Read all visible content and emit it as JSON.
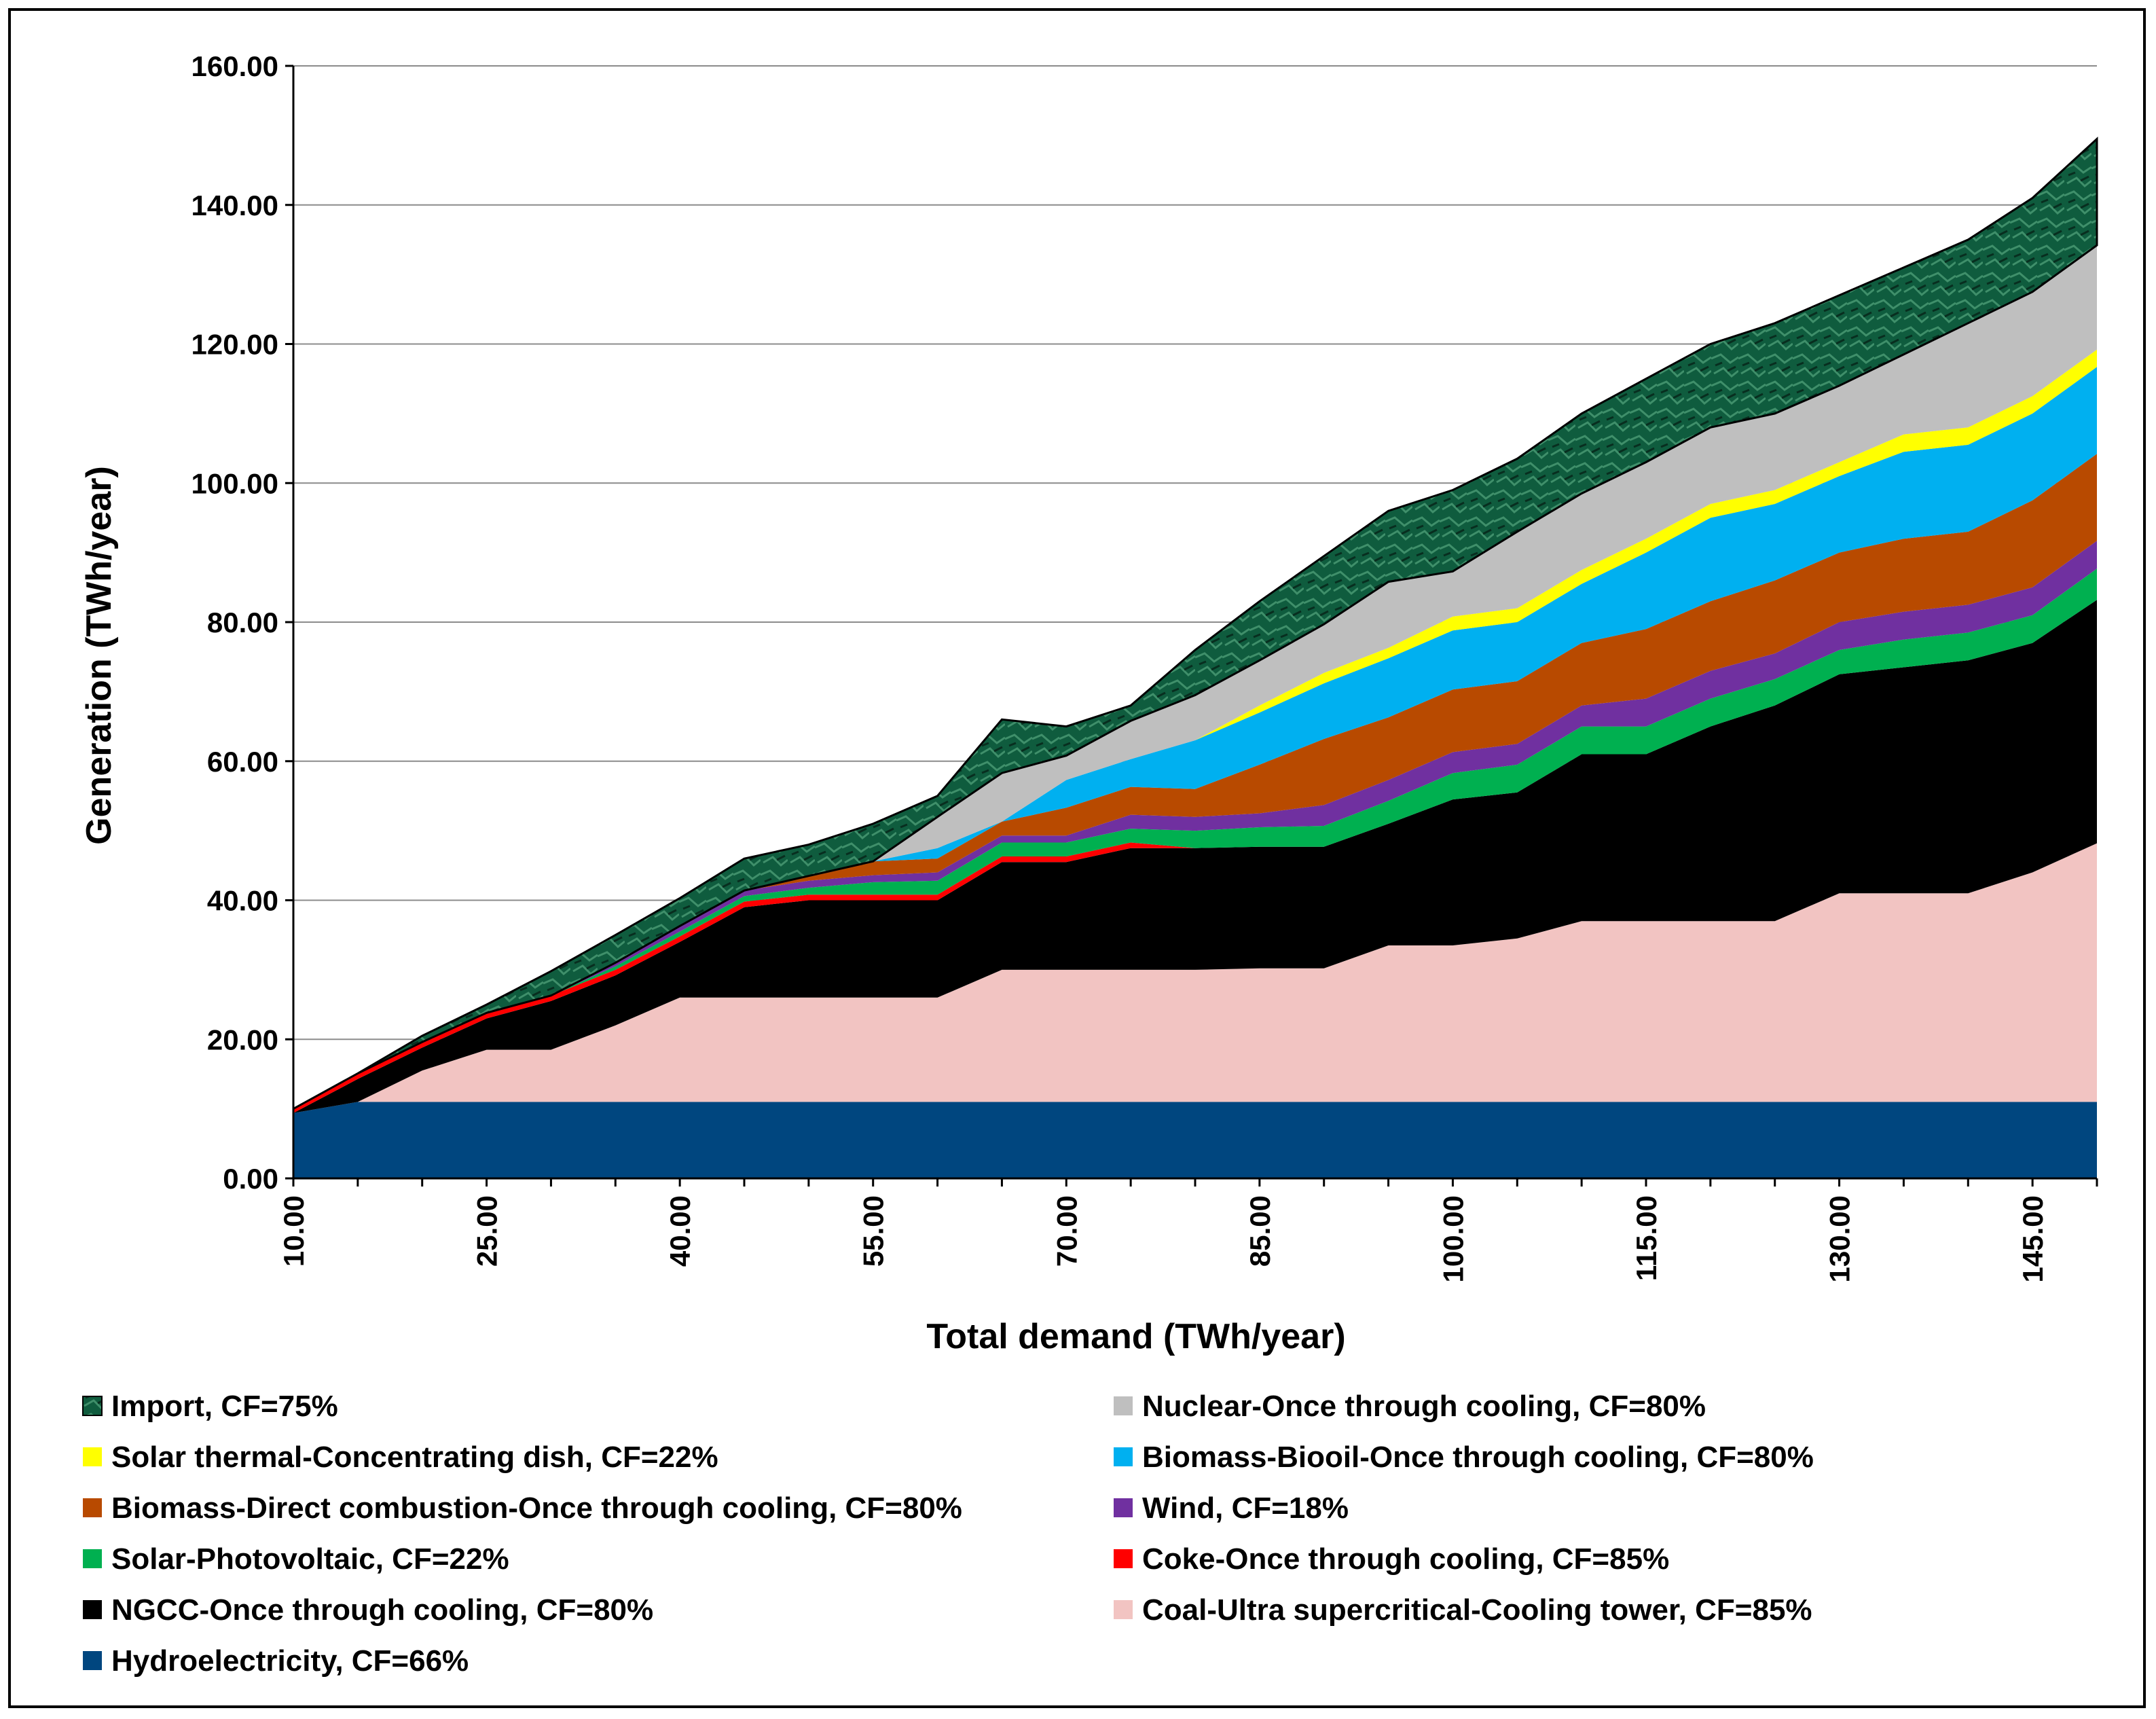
{
  "chart_data": {
    "type": "area",
    "stacked": true,
    "xlabel": "Total demand (TWh/year)",
    "ylabel": "Generation (TWh/year)",
    "ylim": [
      0,
      160
    ],
    "xlim": [
      10,
      150
    ],
    "y_ticks": [
      "0.00",
      "20.00",
      "40.00",
      "60.00",
      "80.00",
      "100.00",
      "120.00",
      "140.00",
      "160.00"
    ],
    "x_ticks": [
      "10.00",
      "25.00",
      "40.00",
      "55.00",
      "70.00",
      "85.00",
      "100.00",
      "115.00",
      "130.00",
      "145.00"
    ],
    "grid": "horizontal",
    "legend_position": "bottom",
    "x": [
      10,
      15,
      20,
      25,
      30,
      35,
      40,
      45,
      50,
      55,
      60,
      65,
      70,
      75,
      80,
      85,
      90,
      95,
      100,
      105,
      110,
      115,
      120,
      125,
      130,
      135,
      140,
      145,
      150
    ],
    "series": [
      {
        "name": "Hydroelectricity, CF=66%",
        "color": "#00467F",
        "values": [
          9.4,
          11,
          11,
          11,
          11,
          11,
          11,
          11,
          11,
          11,
          11,
          11,
          11,
          11,
          11,
          11,
          11,
          11,
          11,
          11,
          11,
          11,
          11,
          11,
          11,
          11,
          11,
          11,
          11
        ]
      },
      {
        "name": "Coal-Ultra supercritical-Cooling tower, CF=85%",
        "color": "#F2C4C2",
        "values": [
          0,
          0,
          4.5,
          7.5,
          7.5,
          11,
          15,
          15,
          15,
          15,
          15,
          19,
          19,
          19,
          19,
          19.2,
          19.2,
          22.5,
          22.5,
          23.5,
          26,
          26,
          26,
          26,
          30,
          30,
          30,
          33,
          37.2
        ]
      },
      {
        "name": "NGCC-Once through cooling, CF=80%",
        "color": "#000000",
        "values": [
          0,
          3.3,
          3.3,
          4.5,
          7,
          7.2,
          8,
          13,
          14,
          14,
          14,
          15.5,
          15.5,
          17.5,
          17.5,
          17.5,
          17.5,
          17.5,
          21,
          21,
          24,
          24,
          28,
          31,
          31.5,
          32.5,
          33.5,
          33,
          35
        ]
      },
      {
        "name": "Coke-Once through cooling, CF=85%",
        "color": "#FF0000",
        "values": [
          0.6,
          0.8,
          0.8,
          0.8,
          0.8,
          0.8,
          0.8,
          0.8,
          0.8,
          0.8,
          0.8,
          0.8,
          0.8,
          0.8,
          0,
          0,
          0,
          0,
          0,
          0,
          0,
          0,
          0,
          0,
          0,
          0,
          0,
          0,
          0
        ]
      },
      {
        "name": "Solar-Photovoltaic, CF=22%",
        "color": "#00B050",
        "values": [
          0,
          0,
          0,
          0,
          0,
          0.5,
          0.7,
          0.8,
          1,
          1.8,
          2,
          2,
          2,
          2,
          2.5,
          2.8,
          3,
          3.3,
          3.8,
          4,
          4,
          4,
          4,
          3.8,
          3.5,
          4,
          4,
          4,
          4.5
        ]
      },
      {
        "name": "Wind, CF=18%",
        "color": "#7030A0",
        "values": [
          0,
          0,
          0,
          0,
          0,
          0.5,
          0.8,
          0.8,
          1,
          1,
          1.2,
          1,
          1,
          2,
          2,
          2,
          3,
          3,
          3,
          3,
          3,
          4,
          4,
          3.7,
          4,
          4,
          4,
          4,
          4
        ]
      },
      {
        "name": "Biomass-Direct combustion-Once through cooling, CF=80%",
        "color": "#B84A00",
        "values": [
          0,
          0,
          0,
          0,
          0,
          0,
          0,
          0,
          0.7,
          2,
          2,
          2,
          4,
          4,
          4,
          7,
          9.5,
          9,
          9,
          9,
          9,
          10,
          10,
          10.5,
          10,
          10.5,
          10.5,
          12.5,
          12.5
        ]
      },
      {
        "name": "Biomass-Biooil-Once through cooling, CF=80%",
        "color": "#00B0F0",
        "values": [
          0,
          0,
          0,
          0,
          0,
          0,
          0,
          0,
          0,
          0,
          1.5,
          0,
          4,
          4,
          7,
          7.5,
          8,
          8.5,
          8.5,
          8.5,
          8.5,
          11,
          12,
          11,
          11,
          12.5,
          12.5,
          12.5,
          12.5
        ]
      },
      {
        "name": "Solar thermal-Concentrating dish, CF=22%",
        "color": "#FFFF00",
        "values": [
          0,
          0,
          0,
          0,
          0,
          0,
          0,
          0,
          0,
          0,
          0,
          0,
          0,
          0,
          0,
          1,
          1.5,
          1.5,
          2,
          2,
          2,
          2,
          2,
          2,
          2,
          2.5,
          2.5,
          2.5,
          2.5
        ]
      },
      {
        "name": "Nuclear-Once through cooling, CF=80%",
        "color": "#BFBFBF",
        "values": [
          0,
          0,
          0,
          0,
          0,
          0,
          0,
          0,
          0,
          0,
          4.5,
          7,
          3.5,
          5.5,
          6.5,
          6.5,
          7,
          9.5,
          6.5,
          11,
          11,
          11,
          11,
          11,
          11,
          11.5,
          15,
          15,
          15
        ]
      },
      {
        "name": "Import, CF=75%",
        "color": "#0F5C3E",
        "values": [
          0,
          0,
          0.9,
          1.2,
          3.5,
          4,
          4,
          4.6,
          4.5,
          5.4,
          3,
          7.7,
          4.2,
          2.2,
          6.5,
          8.5,
          9.8,
          10.2,
          11.7,
          10.5,
          11.5,
          12,
          12,
          13,
          13,
          12.5,
          12,
          13.5,
          15.3
        ]
      }
    ]
  }
}
